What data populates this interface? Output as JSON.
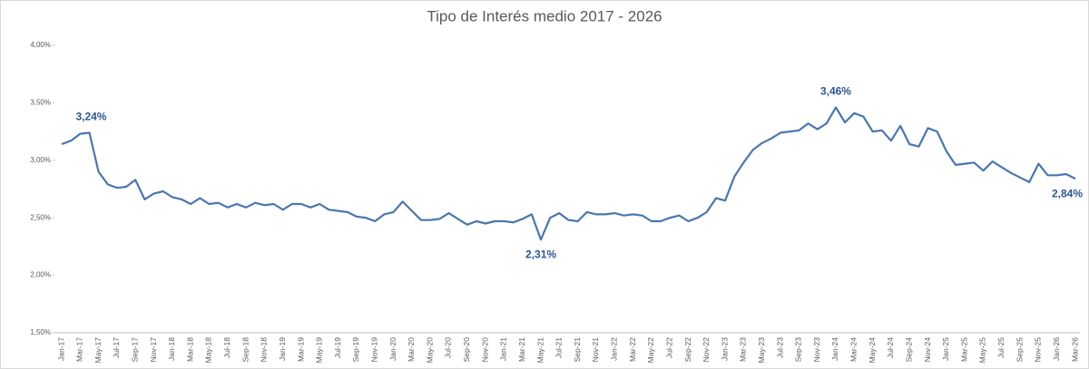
{
  "chart_data": {
    "type": "line",
    "title": "Tipo de Interés medio 2017 - 2026",
    "categories": [
      "Jan-17",
      null,
      "Mar-17",
      null,
      "May-17",
      null,
      "Jul-17",
      null,
      "Sep-17",
      null,
      "Nov-17",
      null,
      "Jan-18",
      null,
      "Mar-18",
      null,
      "May-18",
      null,
      "Jul-18",
      null,
      "Sep-18",
      null,
      "Nov-18",
      null,
      "Jan-19",
      null,
      "Mar-19",
      null,
      "May-19",
      null,
      "Jul-19",
      null,
      "Sep-19",
      null,
      "Nov-19",
      null,
      "Jan-20",
      null,
      "Mar-20",
      null,
      "May-20",
      null,
      "Jul-20",
      null,
      "Sep-20",
      null,
      "Nov-20",
      null,
      "Jan-21",
      null,
      "Mar-21",
      null,
      "May-21",
      null,
      "Jul-21",
      null,
      "Sep-21",
      null,
      "Nov-21",
      null,
      "Jan-22",
      null,
      "Mar-22",
      null,
      "May-22",
      null,
      "Jul-22",
      null,
      "Sep-22",
      null,
      "Nov-22",
      null,
      "Jan-23",
      null,
      "Mar-23",
      null,
      "May-23",
      null,
      "Jul-23",
      null,
      "Sep-23",
      null,
      "Nov-23",
      null,
      "Jan-24",
      null,
      "Mar-24",
      null,
      "May-24",
      null,
      "Jul-24",
      null,
      "Sep-24",
      null,
      "Nov-24",
      null,
      "Jan-25",
      null,
      "Mar-25",
      null,
      "May-25",
      null,
      "Jul-25",
      null,
      "Sep-25",
      null,
      "Nov-25",
      null,
      "Jan-26",
      null,
      "Mar-26"
    ],
    "values": [
      3.14,
      3.17,
      3.23,
      3.24,
      2.9,
      2.79,
      2.76,
      2.77,
      2.83,
      2.66,
      2.71,
      2.73,
      2.68,
      2.66,
      2.62,
      2.67,
      2.62,
      2.63,
      2.59,
      2.62,
      2.59,
      2.63,
      2.61,
      2.62,
      2.57,
      2.62,
      2.62,
      2.59,
      2.62,
      2.57,
      2.56,
      2.55,
      2.51,
      2.5,
      2.47,
      2.53,
      2.55,
      2.64,
      2.56,
      2.48,
      2.48,
      2.49,
      2.54,
      2.49,
      2.44,
      2.47,
      2.45,
      2.47,
      2.47,
      2.46,
      2.49,
      2.53,
      2.31,
      2.5,
      2.54,
      2.48,
      2.47,
      2.55,
      2.53,
      2.53,
      2.54,
      2.52,
      2.53,
      2.52,
      2.47,
      2.47,
      2.5,
      2.52,
      2.47,
      2.5,
      2.55,
      2.67,
      2.65,
      2.86,
      2.98,
      3.09,
      3.15,
      3.19,
      3.24,
      3.25,
      3.26,
      3.32,
      3.27,
      3.32,
      3.46,
      3.33,
      3.41,
      3.38,
      3.25,
      3.26,
      3.17,
      3.3,
      3.14,
      3.12,
      3.28,
      3.25,
      3.08,
      2.96,
      2.97,
      2.98,
      2.91,
      2.99,
      2.94,
      2.89,
      2.85,
      2.81,
      2.97,
      2.87,
      2.87,
      2.88,
      2.84
    ],
    "value_labels": [
      null,
      null,
      null,
      "3,24%",
      null,
      null,
      null,
      null,
      null,
      null,
      null,
      null,
      null,
      null,
      null,
      null,
      null,
      null,
      null,
      null,
      null,
      null,
      null,
      null,
      null,
      null,
      null,
      null,
      null,
      null,
      null,
      null,
      null,
      null,
      null,
      null,
      null,
      null,
      null,
      null,
      null,
      null,
      null,
      null,
      null,
      null,
      null,
      null,
      null,
      null,
      null,
      null,
      "2,31%",
      null,
      null,
      null,
      null,
      null,
      null,
      null,
      null,
      null,
      null,
      null,
      null,
      null,
      null,
      null,
      null,
      null,
      null,
      null,
      null,
      null,
      null,
      null,
      null,
      null,
      null,
      null,
      null,
      null,
      null,
      null,
      "3,46%",
      null,
      null,
      null,
      null,
      null,
      null,
      null,
      null,
      null,
      null,
      null,
      null,
      null,
      null,
      null,
      null,
      null,
      null,
      null,
      null,
      null,
      null,
      null,
      null,
      null,
      "2,84%"
    ],
    "color": "#4a76b0",
    "ylim": [
      1.5,
      4.0
    ],
    "yticks": [
      {
        "value": 1.5,
        "label": "1,50%"
      },
      {
        "value": 2.0,
        "label": "2,00%"
      },
      {
        "value": 2.5,
        "label": "2,50%"
      },
      {
        "value": 3.0,
        "label": "3,00%"
      },
      {
        "value": 3.5,
        "label": "3,50%"
      },
      {
        "value": 4.0,
        "label": "4,00%"
      }
    ],
    "grid": false
  }
}
